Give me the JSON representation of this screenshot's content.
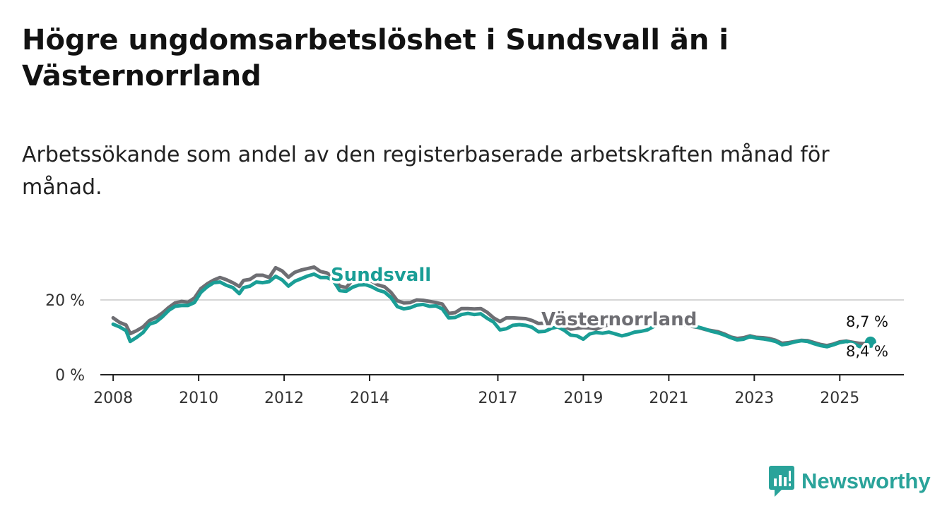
{
  "title": "Högre ungdomsarbetslöshet i Sundsvall än i Västernorrland",
  "subtitle": "Arbetssökande som andel av den registerbaserade arbetskraften månad för månad.",
  "brand": {
    "name": "Newsworthy",
    "color": "#2aa39a",
    "icon": "bar-chart-speech-icon"
  },
  "chart_data": {
    "type": "line",
    "title": "Högre ungdomsarbetslöshet i Sundsvall än i Västernorrland",
    "xlabel": "",
    "ylabel": "",
    "xlim": [
      2007.7,
      2026.5
    ],
    "ylim": [
      0,
      30
    ],
    "xticks": [
      {
        "value": 2008,
        "label": "2008"
      },
      {
        "value": 2010,
        "label": "2010"
      },
      {
        "value": 2012,
        "label": "2012"
      },
      {
        "value": 2014,
        "label": "2014"
      },
      {
        "value": 2017,
        "label": "2017"
      },
      {
        "value": 2019,
        "label": "2019"
      },
      {
        "value": 2021,
        "label": "2021"
      },
      {
        "value": 2023,
        "label": "2023"
      },
      {
        "value": 2025,
        "label": "2025"
      }
    ],
    "yticks": [
      {
        "value": 0,
        "label": "0 %"
      },
      {
        "value": 20,
        "label": "20 %"
      }
    ],
    "gridlines": [
      20
    ],
    "series": [
      {
        "name": "Västernorrland",
        "color": "#6e6e73",
        "end_label": "8,4 %",
        "points": [
          [
            2008.0,
            15.2
          ],
          [
            2008.15,
            14.0
          ],
          [
            2008.3,
            13.3
          ],
          [
            2008.4,
            11.0
          ],
          [
            2008.55,
            11.8
          ],
          [
            2008.7,
            12.8
          ],
          [
            2008.85,
            14.5
          ],
          [
            2009.0,
            15.3
          ],
          [
            2009.15,
            16.5
          ],
          [
            2009.3,
            18.0
          ],
          [
            2009.45,
            19.2
          ],
          [
            2009.6,
            19.6
          ],
          [
            2009.75,
            19.4
          ],
          [
            2009.9,
            20.5
          ],
          [
            2010.05,
            23.0
          ],
          [
            2010.2,
            24.3
          ],
          [
            2010.35,
            25.3
          ],
          [
            2010.5,
            26.0
          ],
          [
            2010.65,
            25.4
          ],
          [
            2010.8,
            24.6
          ],
          [
            2010.95,
            23.6
          ],
          [
            2011.05,
            25.2
          ],
          [
            2011.2,
            25.5
          ],
          [
            2011.35,
            26.6
          ],
          [
            2011.5,
            26.6
          ],
          [
            2011.65,
            26.0
          ],
          [
            2011.8,
            28.6
          ],
          [
            2011.95,
            27.8
          ],
          [
            2012.1,
            26.1
          ],
          [
            2012.25,
            27.4
          ],
          [
            2012.4,
            28.0
          ],
          [
            2012.55,
            28.4
          ],
          [
            2012.7,
            28.8
          ],
          [
            2012.85,
            27.6
          ],
          [
            2013.0,
            27.2
          ],
          [
            2013.15,
            26.2
          ],
          [
            2013.3,
            23.7
          ],
          [
            2013.45,
            23.3
          ],
          [
            2013.6,
            25.3
          ],
          [
            2013.75,
            25.6
          ],
          [
            2013.9,
            25.6
          ],
          [
            2014.05,
            25.0
          ],
          [
            2014.2,
            24.0
          ],
          [
            2014.35,
            23.5
          ],
          [
            2014.5,
            22.0
          ],
          [
            2014.65,
            19.8
          ],
          [
            2014.8,
            19.2
          ],
          [
            2014.95,
            19.3
          ],
          [
            2015.1,
            20.0
          ],
          [
            2015.25,
            19.9
          ],
          [
            2015.4,
            19.6
          ],
          [
            2015.55,
            19.3
          ],
          [
            2015.7,
            18.9
          ],
          [
            2015.85,
            16.4
          ],
          [
            2016.0,
            16.6
          ],
          [
            2016.15,
            17.7
          ],
          [
            2016.3,
            17.7
          ],
          [
            2016.45,
            17.6
          ],
          [
            2016.6,
            17.7
          ],
          [
            2016.75,
            16.7
          ],
          [
            2016.9,
            15.2
          ],
          [
            2017.05,
            14.2
          ],
          [
            2017.2,
            15.2
          ],
          [
            2017.35,
            15.2
          ],
          [
            2017.5,
            15.1
          ],
          [
            2017.65,
            15.0
          ],
          [
            2017.8,
            14.5
          ],
          [
            2017.95,
            13.7
          ],
          [
            2018.1,
            13.8
          ],
          [
            2018.25,
            14.2
          ],
          [
            2018.4,
            13.4
          ],
          [
            2018.55,
            12.8
          ],
          [
            2018.7,
            12.2
          ],
          [
            2018.85,
            12.4
          ],
          [
            2019.0,
            12.6
          ],
          [
            2019.15,
            12.5
          ],
          [
            2019.3,
            12.2
          ],
          [
            2019.45,
            12.9
          ],
          [
            2019.6,
            13.4
          ],
          [
            2019.75,
            13.7
          ],
          [
            2019.9,
            14.0
          ],
          [
            2020.05,
            14.4
          ],
          [
            2020.2,
            14.8
          ],
          [
            2020.35,
            15.4
          ],
          [
            2020.5,
            15.1
          ],
          [
            2020.65,
            14.9
          ],
          [
            2020.8,
            14.6
          ],
          [
            2020.95,
            14.3
          ],
          [
            2021.1,
            14.2
          ],
          [
            2021.25,
            13.6
          ],
          [
            2021.4,
            13.3
          ],
          [
            2021.55,
            12.9
          ],
          [
            2021.7,
            12.6
          ],
          [
            2021.85,
            12.1
          ],
          [
            2022.0,
            11.8
          ],
          [
            2022.15,
            11.5
          ],
          [
            2022.3,
            10.9
          ],
          [
            2022.45,
            10.1
          ],
          [
            2022.6,
            9.7
          ],
          [
            2022.75,
            9.9
          ],
          [
            2022.9,
            10.4
          ],
          [
            2023.05,
            10.0
          ],
          [
            2023.2,
            9.9
          ],
          [
            2023.35,
            9.7
          ],
          [
            2023.5,
            9.2
          ],
          [
            2023.65,
            8.4
          ],
          [
            2023.8,
            8.6
          ],
          [
            2023.95,
            8.9
          ],
          [
            2024.1,
            9.2
          ],
          [
            2024.25,
            9.1
          ],
          [
            2024.4,
            8.6
          ],
          [
            2024.55,
            8.1
          ],
          [
            2024.7,
            7.8
          ],
          [
            2024.85,
            8.2
          ],
          [
            2025.0,
            8.8
          ],
          [
            2025.15,
            9.0
          ],
          [
            2025.3,
            8.7
          ],
          [
            2025.45,
            8.4
          ],
          [
            2025.55,
            8.3
          ],
          [
            2025.65,
            8.5
          ],
          [
            2025.72,
            8.4
          ]
        ]
      },
      {
        "name": "Sundsvall",
        "color": "#1a9e96",
        "end_label": "8,7 %",
        "points": [
          [
            2008.0,
            13.5
          ],
          [
            2008.15,
            12.8
          ],
          [
            2008.3,
            11.8
          ],
          [
            2008.4,
            8.9
          ],
          [
            2008.55,
            10.0
          ],
          [
            2008.7,
            11.3
          ],
          [
            2008.85,
            13.5
          ],
          [
            2009.0,
            14.1
          ],
          [
            2009.15,
            15.5
          ],
          [
            2009.3,
            17.2
          ],
          [
            2009.45,
            18.3
          ],
          [
            2009.6,
            18.5
          ],
          [
            2009.75,
            18.5
          ],
          [
            2009.9,
            19.3
          ],
          [
            2010.05,
            22.0
          ],
          [
            2010.2,
            23.5
          ],
          [
            2010.35,
            24.6
          ],
          [
            2010.5,
            24.8
          ],
          [
            2010.65,
            23.9
          ],
          [
            2010.8,
            23.3
          ],
          [
            2010.95,
            21.7
          ],
          [
            2011.05,
            23.3
          ],
          [
            2011.2,
            23.7
          ],
          [
            2011.35,
            24.8
          ],
          [
            2011.5,
            24.6
          ],
          [
            2011.65,
            24.9
          ],
          [
            2011.8,
            26.3
          ],
          [
            2011.95,
            25.4
          ],
          [
            2012.1,
            23.7
          ],
          [
            2012.25,
            25.0
          ],
          [
            2012.4,
            25.7
          ],
          [
            2012.55,
            26.4
          ],
          [
            2012.7,
            26.9
          ],
          [
            2012.85,
            26.0
          ],
          [
            2013.0,
            26.0
          ],
          [
            2013.15,
            25.2
          ],
          [
            2013.3,
            22.5
          ],
          [
            2013.45,
            22.3
          ],
          [
            2013.6,
            23.4
          ],
          [
            2013.75,
            24.0
          ],
          [
            2013.9,
            24.1
          ],
          [
            2014.05,
            23.5
          ],
          [
            2014.2,
            22.6
          ],
          [
            2014.35,
            22.1
          ],
          [
            2014.5,
            20.6
          ],
          [
            2014.65,
            18.2
          ],
          [
            2014.8,
            17.6
          ],
          [
            2014.95,
            17.9
          ],
          [
            2015.1,
            18.6
          ],
          [
            2015.25,
            18.8
          ],
          [
            2015.4,
            18.3
          ],
          [
            2015.55,
            18.4
          ],
          [
            2015.7,
            17.6
          ],
          [
            2015.85,
            15.2
          ],
          [
            2016.0,
            15.3
          ],
          [
            2016.15,
            16.1
          ],
          [
            2016.3,
            16.4
          ],
          [
            2016.45,
            16.1
          ],
          [
            2016.6,
            16.3
          ],
          [
            2016.75,
            15.1
          ],
          [
            2016.9,
            14.1
          ],
          [
            2017.05,
            12.0
          ],
          [
            2017.2,
            12.3
          ],
          [
            2017.35,
            13.2
          ],
          [
            2017.5,
            13.4
          ],
          [
            2017.65,
            13.2
          ],
          [
            2017.8,
            12.7
          ],
          [
            2017.95,
            11.5
          ],
          [
            2018.1,
            11.6
          ],
          [
            2018.25,
            12.4
          ],
          [
            2018.4,
            12.8
          ],
          [
            2018.55,
            11.9
          ],
          [
            2018.7,
            10.6
          ],
          [
            2018.85,
            10.4
          ],
          [
            2019.0,
            9.5
          ],
          [
            2019.15,
            10.9
          ],
          [
            2019.3,
            11.3
          ],
          [
            2019.45,
            11.1
          ],
          [
            2019.6,
            11.4
          ],
          [
            2019.75,
            10.9
          ],
          [
            2019.9,
            10.4
          ],
          [
            2020.05,
            10.8
          ],
          [
            2020.2,
            11.4
          ],
          [
            2020.35,
            11.6
          ],
          [
            2020.5,
            12.0
          ],
          [
            2020.65,
            12.9
          ],
          [
            2020.8,
            13.4
          ],
          [
            2020.95,
            13.8
          ],
          [
            2021.1,
            14.1
          ],
          [
            2021.25,
            13.7
          ],
          [
            2021.4,
            13.3
          ],
          [
            2021.55,
            13.0
          ],
          [
            2021.7,
            12.7
          ],
          [
            2021.85,
            12.2
          ],
          [
            2022.0,
            11.6
          ],
          [
            2022.15,
            11.2
          ],
          [
            2022.3,
            10.6
          ],
          [
            2022.45,
            9.9
          ],
          [
            2022.6,
            9.3
          ],
          [
            2022.75,
            9.5
          ],
          [
            2022.9,
            10.2
          ],
          [
            2023.05,
            9.8
          ],
          [
            2023.2,
            9.6
          ],
          [
            2023.35,
            9.3
          ],
          [
            2023.5,
            8.9
          ],
          [
            2023.65,
            8.0
          ],
          [
            2023.8,
            8.3
          ],
          [
            2023.95,
            8.8
          ],
          [
            2024.1,
            9.1
          ],
          [
            2024.25,
            8.9
          ],
          [
            2024.4,
            8.3
          ],
          [
            2024.55,
            7.8
          ],
          [
            2024.7,
            7.5
          ],
          [
            2024.85,
            8.0
          ],
          [
            2025.0,
            8.6
          ],
          [
            2025.15,
            8.9
          ],
          [
            2025.3,
            8.5
          ],
          [
            2025.45,
            7.6
          ],
          [
            2025.55,
            7.3
          ],
          [
            2025.65,
            8.0
          ],
          [
            2025.72,
            8.7
          ]
        ]
      }
    ]
  }
}
